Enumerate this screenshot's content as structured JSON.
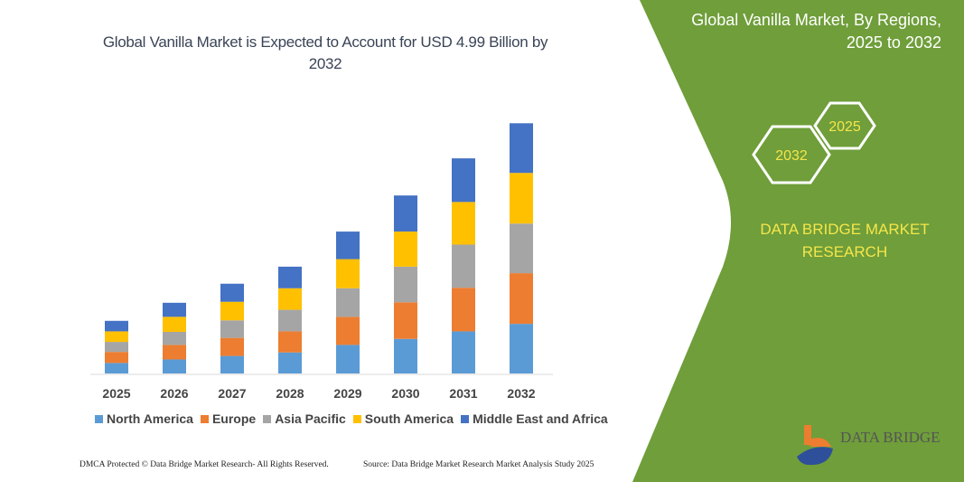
{
  "header": {
    "title": "Global Vanilla Market is Expected to Account for USD 4.99 Billion by 2032"
  },
  "side_panel": {
    "title_line1": "Global Vanilla Market, By Regions,",
    "title_line2": "2025 to 2032",
    "hex_start": "2025",
    "hex_end": "2032",
    "brand_line1": "DATA BRIDGE MARKET",
    "brand_line2": "RESEARCH",
    "logo_text": "DATA BRIDGE",
    "color": "#6f9e3a"
  },
  "footer": {
    "left": "DMCA Protected © Data Bridge Market Research-  All Rights Reserved.",
    "right": "Source: Data Bridge Market Research  Market Analysis Study 2025"
  },
  "chart_data": {
    "type": "bar",
    "stacked": true,
    "title": "Global Vanilla Market is Expected to Account for USD 4.99 Billion by 2032",
    "categories": [
      "2025",
      "2026",
      "2027",
      "2028",
      "2029",
      "2030",
      "2031",
      "2032"
    ],
    "ylabel": "",
    "xlabel": "",
    "ylim": [
      0,
      4.99
    ],
    "grid": false,
    "legend": "bottom",
    "series": [
      {
        "name": "North America",
        "color": "#5b9bd5",
        "values": [
          0.21,
          0.28,
          0.35,
          0.42,
          0.57,
          0.69,
          0.84,
          0.99
        ]
      },
      {
        "name": "Europe",
        "color": "#ed7d31",
        "values": [
          0.22,
          0.29,
          0.36,
          0.42,
          0.56,
          0.73,
          0.87,
          1.01
        ]
      },
      {
        "name": "Asia Pacific",
        "color": "#a5a5a5",
        "values": [
          0.2,
          0.26,
          0.35,
          0.43,
          0.57,
          0.71,
          0.86,
          0.99
        ]
      },
      {
        "name": "South America",
        "color": "#ffc000",
        "values": [
          0.21,
          0.3,
          0.37,
          0.43,
          0.58,
          0.7,
          0.85,
          1.01
        ]
      },
      {
        "name": "Middle East and Africa",
        "color": "#4472c4",
        "values": [
          0.21,
          0.28,
          0.36,
          0.43,
          0.55,
          0.72,
          0.87,
          0.99
        ]
      }
    ]
  }
}
